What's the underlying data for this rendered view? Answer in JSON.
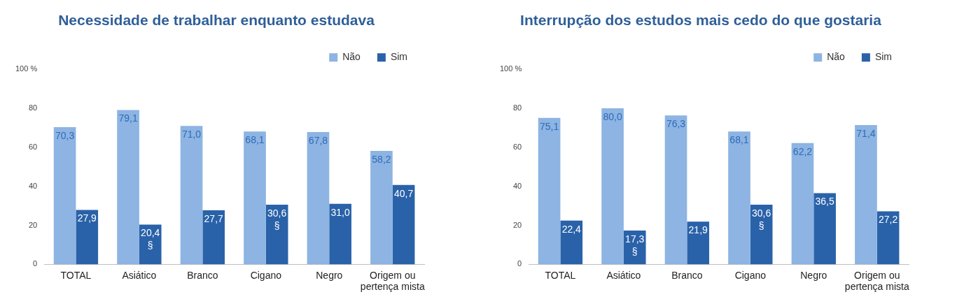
{
  "chart_data": [
    {
      "type": "bar",
      "title": "Necessidade de trabalhar enquanto estudava",
      "categories": [
        "TOTAL",
        "Asiático",
        "Branco",
        "Cigano",
        "Negro",
        "Origem ou pertença mista"
      ],
      "ylim": [
        0,
        100
      ],
      "yticks": [
        0,
        20,
        40,
        60,
        80,
        {
          "value": 100,
          "label": "100 %"
        }
      ],
      "grid": false,
      "legend": "top right",
      "series": [
        {
          "name": "Não",
          "color": "#8db4e2",
          "values": [
            70.3,
            79.1,
            71.0,
            68.1,
            67.8,
            58.2
          ],
          "value_labels": [
            "70,3",
            "79,1",
            "71,0",
            "68,1",
            "67,8",
            "58,2"
          ]
        },
        {
          "name": "Sim",
          "color": "#2a62a9",
          "values": [
            27.9,
            20.4,
            27.7,
            30.6,
            31.0,
            40.7
          ],
          "value_labels": [
            "27,9",
            "20,4 §",
            "27,7",
            "30,6 §",
            "31,0",
            "40,7"
          ]
        }
      ]
    },
    {
      "type": "bar",
      "title": "Interrupção dos estudos mais cedo do que gostaria",
      "categories": [
        "TOTAL",
        "Asiático",
        "Branco",
        "Cigano",
        "Negro",
        "Origem ou pertença mista"
      ],
      "ylim": [
        0,
        100
      ],
      "yticks": [
        0,
        20,
        40,
        60,
        80,
        {
          "value": 100,
          "label": "100 %"
        }
      ],
      "grid": false,
      "legend": "top right",
      "series": [
        {
          "name": "Não",
          "color": "#8db4e2",
          "values": [
            75.1,
            80.0,
            76.3,
            68.1,
            62.2,
            71.4
          ],
          "value_labels": [
            "75,1",
            "80,0",
            "76,3",
            "68,1",
            "62,2",
            "71,4"
          ]
        },
        {
          "name": "Sim",
          "color": "#2a62a9",
          "values": [
            22.4,
            17.3,
            21.9,
            30.6,
            36.5,
            27.2
          ],
          "value_labels": [
            "22,4",
            "17,3 §",
            "21,9",
            "30,6 §",
            "36,5",
            "27,2"
          ]
        }
      ]
    }
  ]
}
